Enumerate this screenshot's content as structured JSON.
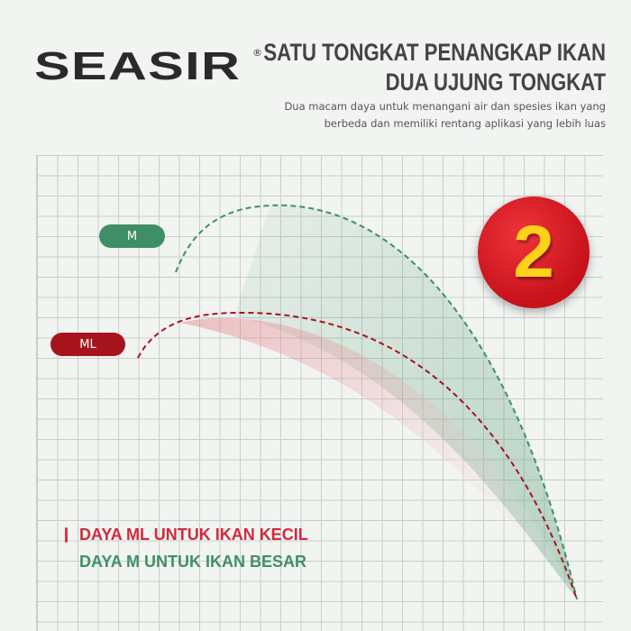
{
  "brand": {
    "logo_text": "SEASIR",
    "registered": "®"
  },
  "header": {
    "title_line1": "SATU TONGKAT PENANGKAP IKAN",
    "title_line2": "DUA UJUNG TONGKAT",
    "subtitle_line1": "Dua macam daya untuk menangani air dan spesies ikan yang",
    "subtitle_line2": "berbeda dan memiliki rentang aplikasi yang lebih luas"
  },
  "badge": {
    "number": "2"
  },
  "curves": {
    "m_label": "M",
    "ml_label": "ML",
    "m_color": "#3f8f66",
    "ml_color": "#a8141e"
  },
  "legend": {
    "ml_text": "DAYA ML UNTUK IKAN KECIL",
    "m_text": "DAYA M UNTUK IKAN BESAR"
  }
}
